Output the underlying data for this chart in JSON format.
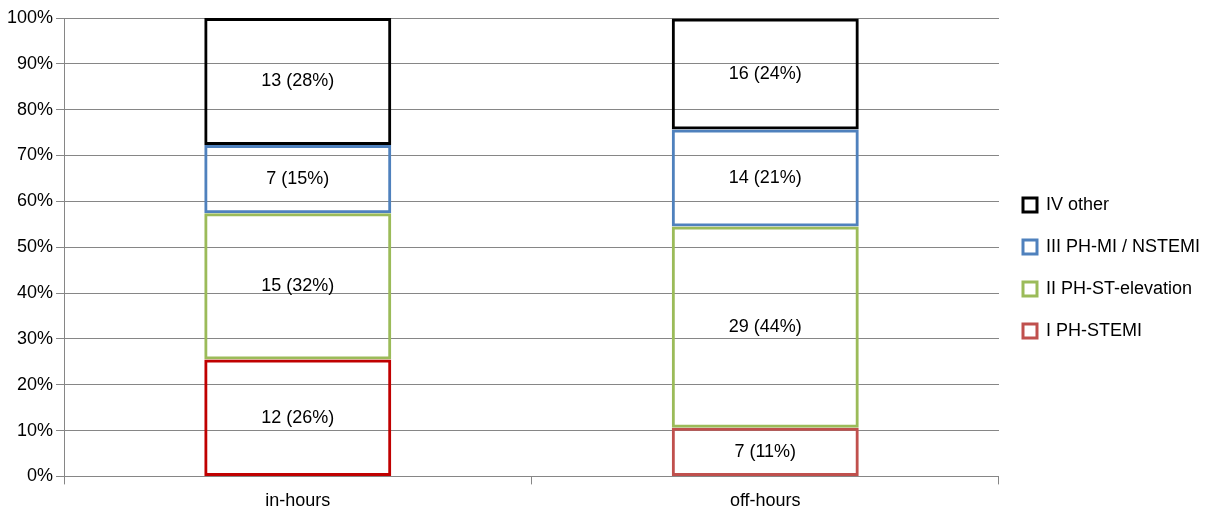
{
  "chart_data": {
    "type": "bar",
    "stacked": true,
    "categories": [
      "in-hours",
      "off-hours"
    ],
    "series": [
      {
        "name": "I PH-STEMI",
        "color": "#c0504d",
        "colors": [
          "#c00000",
          "#c0504d"
        ],
        "values": [
          25.5,
          10.6
        ],
        "value_labels": [
          "12 (26%)",
          "7 (11%)"
        ]
      },
      {
        "name": "II PH-ST-elevation",
        "color": "#9bbb59",
        "values": [
          31.9,
          43.9
        ],
        "value_labels": [
          "15 (32%)",
          "29 (44%)"
        ]
      },
      {
        "name": "III PH-MI / NSTEMI",
        "color": "#4f81bd",
        "values": [
          14.9,
          21.2
        ],
        "value_labels": [
          "7 (15%)",
          "14 (21%)"
        ]
      },
      {
        "name": "IV other",
        "color": "#000000",
        "values": [
          27.7,
          24.2
        ],
        "value_labels": [
          "13 (28%)",
          "16 (24%)"
        ]
      }
    ],
    "ylim": [
      0,
      100
    ],
    "yticks": [
      {
        "value": 0,
        "label": "0%"
      },
      {
        "value": 10,
        "label": "10%"
      },
      {
        "value": 20,
        "label": "20%"
      },
      {
        "value": 30,
        "label": "30%"
      },
      {
        "value": 40,
        "label": "40%"
      },
      {
        "value": 50,
        "label": "50%"
      },
      {
        "value": 60,
        "label": "60%"
      },
      {
        "value": 70,
        "label": "70%"
      },
      {
        "value": 80,
        "label": "80%"
      },
      {
        "value": 90,
        "label": "90%"
      },
      {
        "value": 100,
        "label": "100%"
      }
    ],
    "grid": "y",
    "legend": "right"
  }
}
